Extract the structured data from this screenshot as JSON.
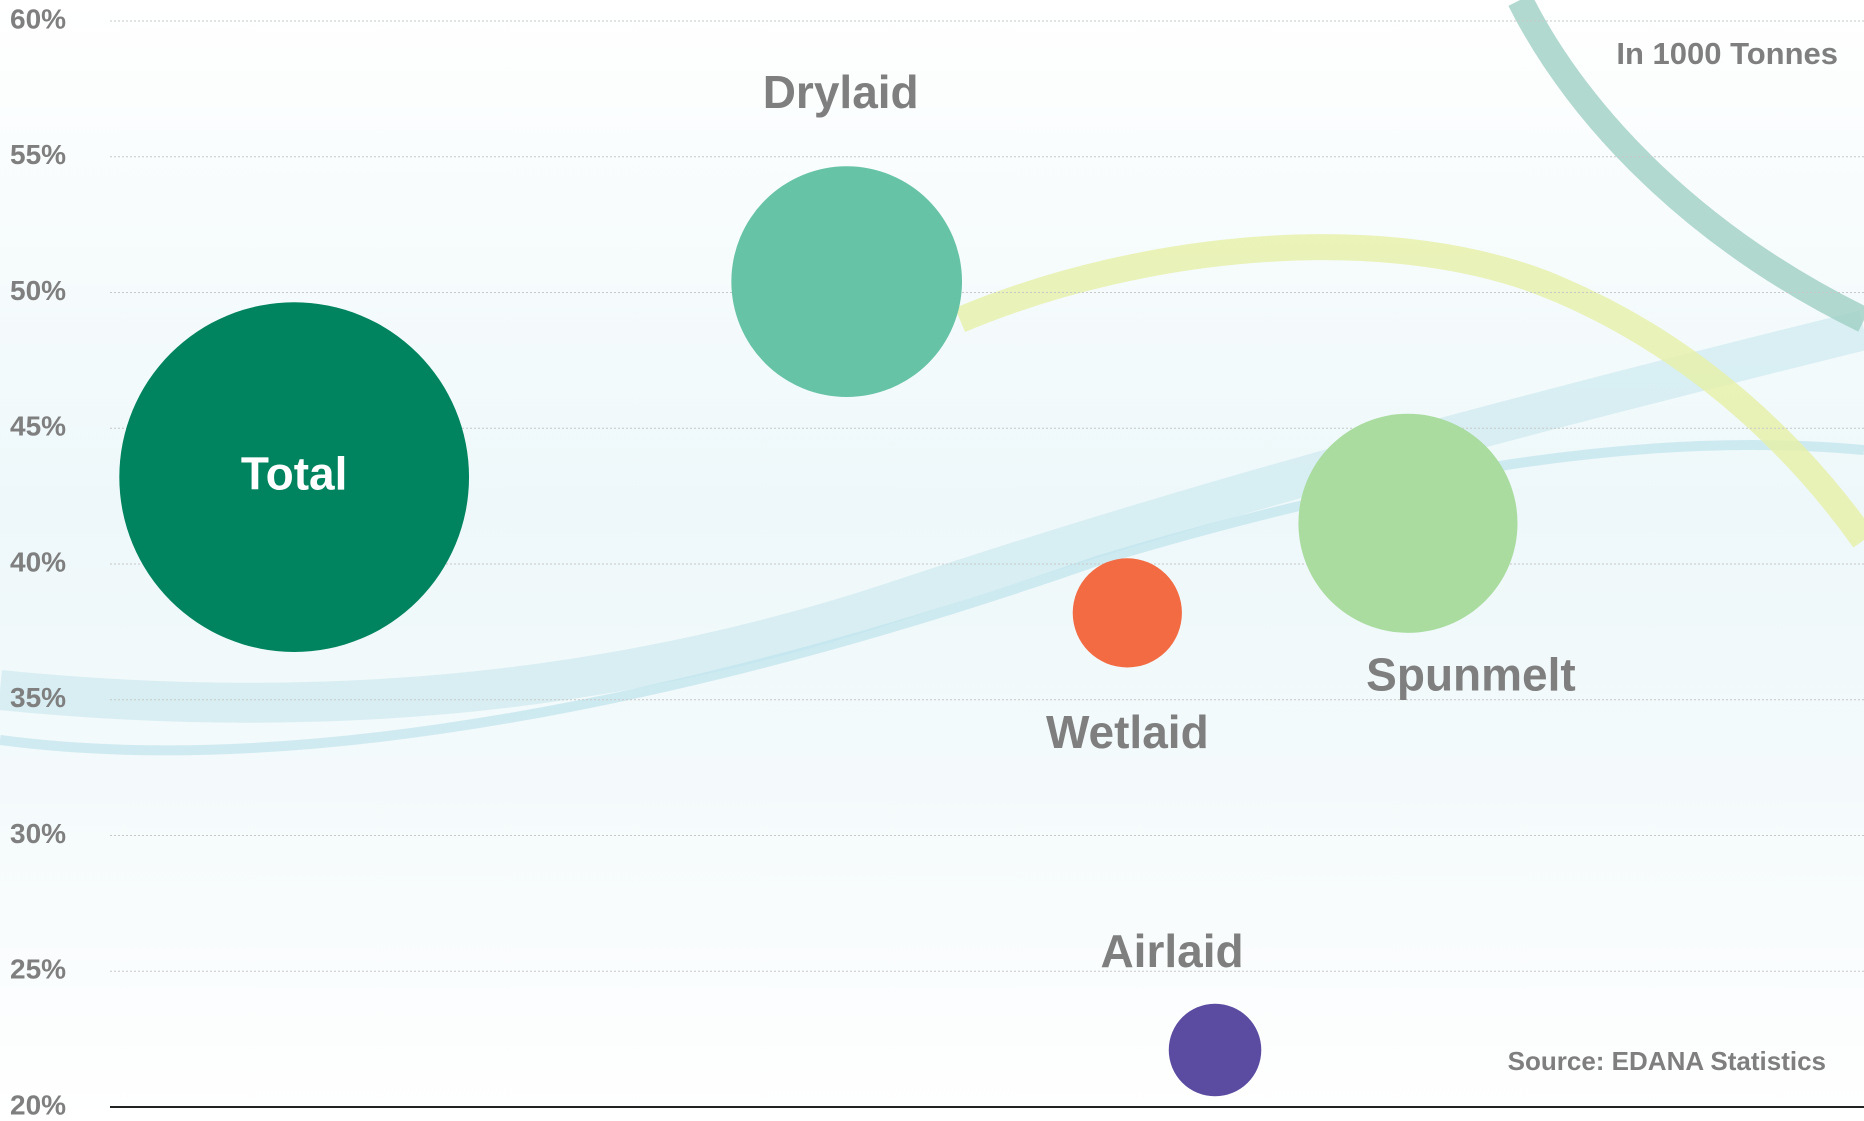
{
  "chart_data": {
    "type": "bubble",
    "annotations": [
      "In 1000 Tonnes",
      "Source: EDANA Statistics"
    ],
    "categories": [
      "Total",
      "Drylaid",
      "Wetlaid",
      "Spunmelt",
      "Airlaid"
    ],
    "x": [
      10.5,
      42,
      58,
      74,
      63
    ],
    "values": [
      43.2,
      50.4,
      38.2,
      41.5,
      22.1
    ],
    "sizes": [
      2000,
      870,
      195,
      785,
      140
    ],
    "colors": [
      "#00845f",
      "#66c3a5",
      "#f36b43",
      "#aadca0",
      "#5b4ba1"
    ],
    "xlim": [
      0,
      100
    ],
    "ylim": [
      20,
      60
    ],
    "yticks": [
      {
        "value": 20,
        "label": "20%"
      },
      {
        "value": 25,
        "label": "25%"
      },
      {
        "value": 30,
        "label": "30%"
      },
      {
        "value": 35,
        "label": "35%"
      },
      {
        "value": 40,
        "label": "40%"
      },
      {
        "value": 45,
        "label": "45%"
      },
      {
        "value": 50,
        "label": "50%"
      },
      {
        "value": 55,
        "label": "55%"
      },
      {
        "value": 60,
        "label": "60%"
      }
    ],
    "grid": true
  }
}
